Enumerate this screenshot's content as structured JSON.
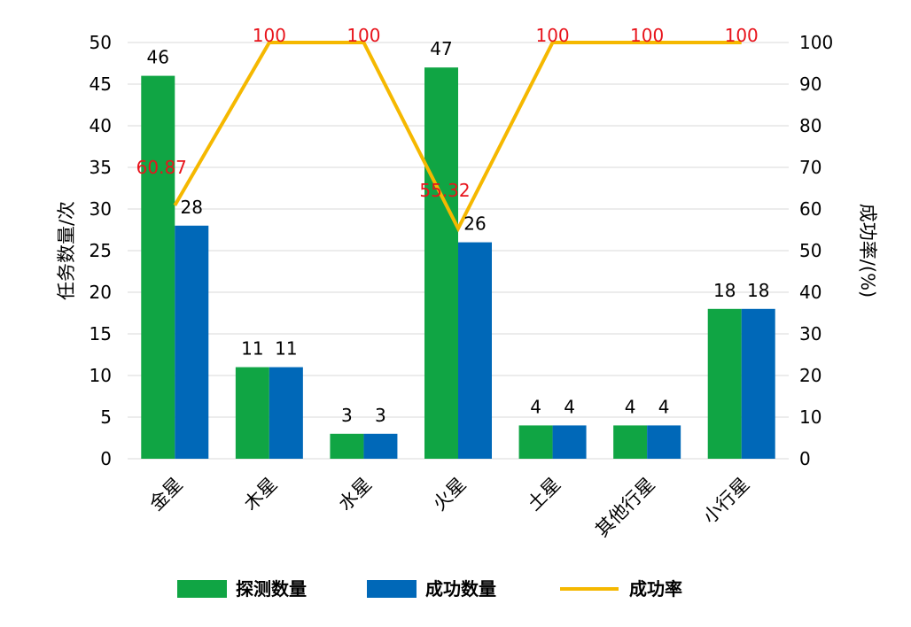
{
  "chart_data": {
    "type": "bar+line",
    "categories": [
      "金星",
      "木星",
      "水星",
      "火星",
      "土星",
      "其他行星",
      "小行星"
    ],
    "series": [
      {
        "name": "探测数量",
        "type": "bar",
        "axis": "left",
        "color": "#10a544",
        "values": [
          46,
          11,
          3,
          47,
          4,
          4,
          18
        ]
      },
      {
        "name": "成功数量",
        "type": "bar",
        "axis": "left",
        "color": "#0068b8",
        "values": [
          28,
          11,
          3,
          26,
          4,
          4,
          18
        ]
      },
      {
        "name": "成功率",
        "type": "line",
        "axis": "right",
        "color": "#f5b800",
        "label_color": "#e8141c",
        "values": [
          60.87,
          100,
          100,
          55.32,
          100,
          100,
          100
        ]
      }
    ],
    "ylabel": "任务数量/次",
    "y2label": "成功率/(%)",
    "ylim": [
      0,
      50
    ],
    "y_ticks": [
      0,
      5,
      10,
      15,
      20,
      25,
      30,
      35,
      40,
      45,
      50
    ],
    "y2lim": [
      0,
      100
    ],
    "y2_ticks": [
      0,
      10,
      20,
      30,
      40,
      50,
      60,
      70,
      80,
      90,
      100
    ],
    "grid": true,
    "legend_position": "bottom"
  }
}
